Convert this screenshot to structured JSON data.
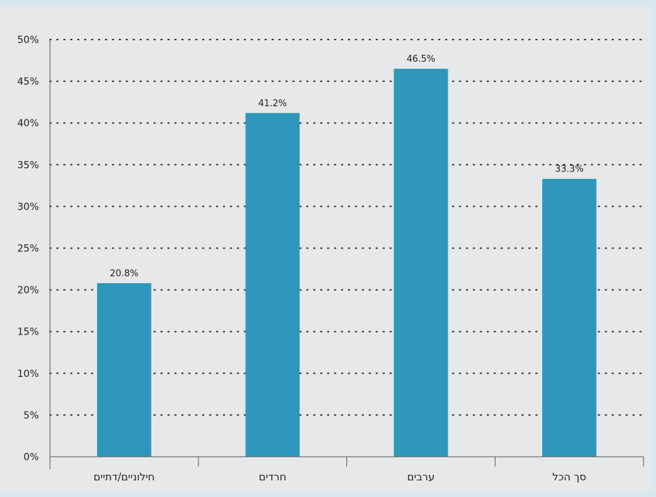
{
  "chart_data": {
    "type": "bar",
    "categories": [
      "חילוניים/דתיים",
      "חרדים",
      "ערבים",
      "סך הכל"
    ],
    "values": [
      20.8,
      41.2,
      46.5,
      33.3
    ],
    "value_labels": [
      "20.8%",
      "41.2%",
      "46.5%",
      "33.3%"
    ],
    "y_ticks": [
      "0%",
      "5%",
      "10%",
      "15%",
      "20%",
      "25%",
      "30%",
      "35%",
      "40%",
      "45%",
      "50%"
    ],
    "ylim": [
      0,
      50
    ],
    "grid": true,
    "title": "",
    "xlabel": "",
    "ylabel": "",
    "colors": {
      "bar": "#2e97bb",
      "background": "#e6e8ea",
      "frame": "#dbe7ee",
      "grid": "#333333",
      "axis": "#555555"
    }
  }
}
